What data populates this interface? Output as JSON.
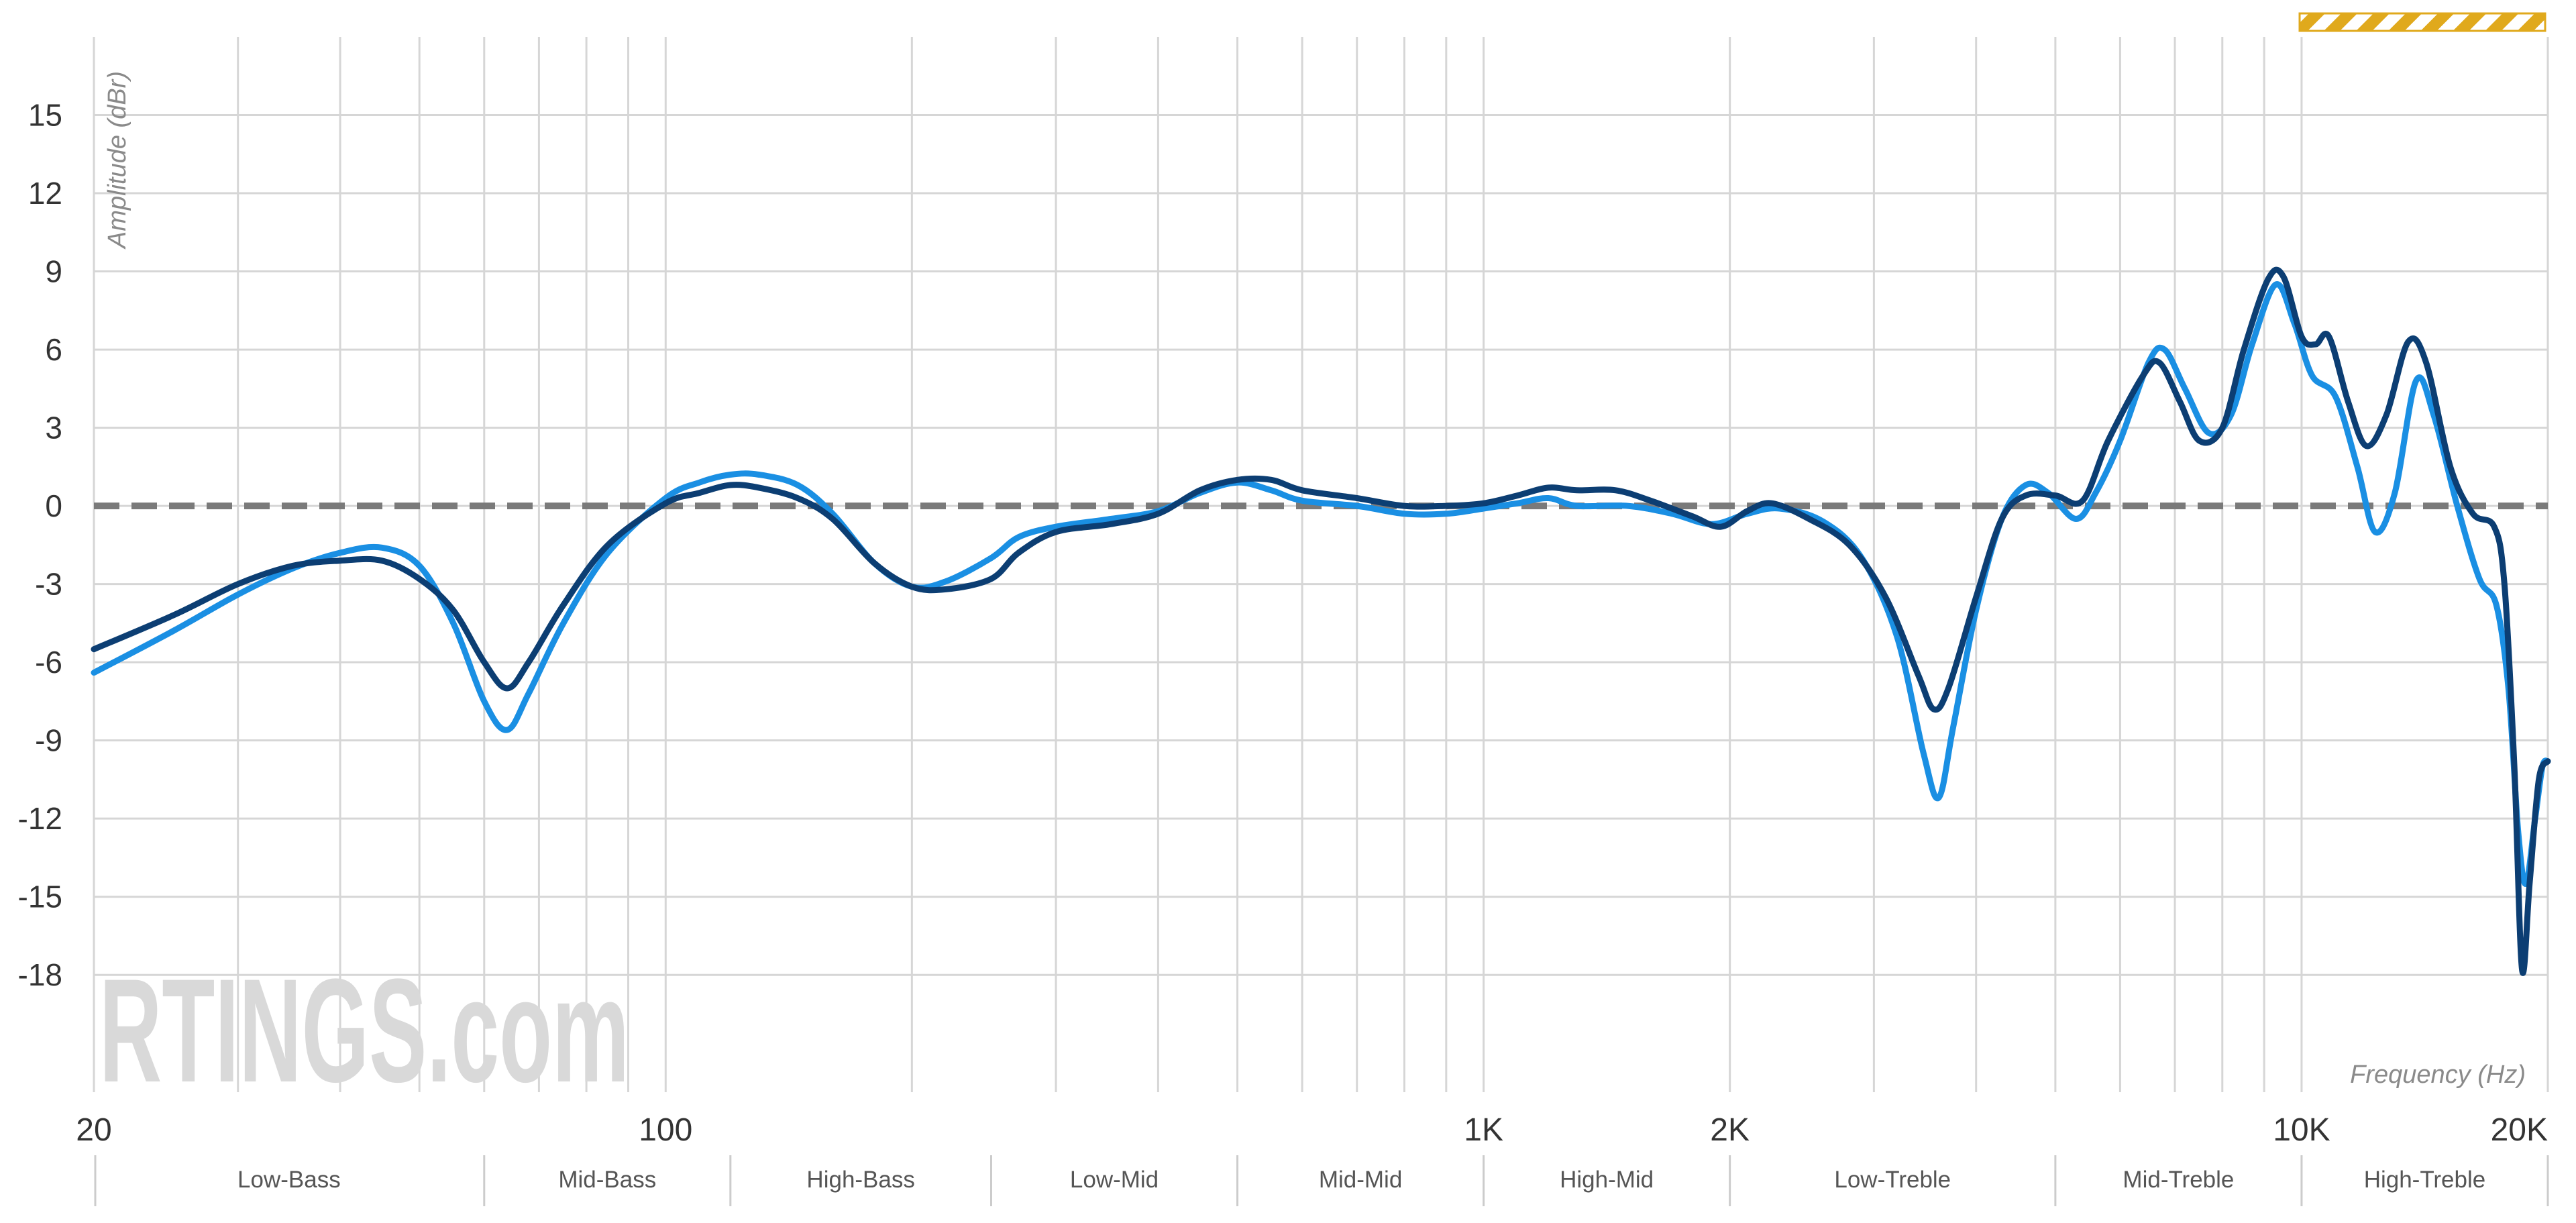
{
  "chart_data": {
    "type": "line",
    "xlabel": "Frequency (Hz)",
    "ylabel": "Amplitude (dBr)",
    "x_scale": "log",
    "xlim": [
      20,
      20000
    ],
    "ylim": [
      -22.5,
      18
    ],
    "grid": true,
    "legend": "none",
    "yticks": [
      {
        "value": 15,
        "label": "15"
      },
      {
        "value": 12,
        "label": "12"
      },
      {
        "value": 9,
        "label": "9"
      },
      {
        "value": 6,
        "label": "6"
      },
      {
        "value": 3,
        "label": "3"
      },
      {
        "value": 0,
        "label": "0"
      },
      {
        "value": -3,
        "label": "-3"
      },
      {
        "value": -6,
        "label": "-6"
      },
      {
        "value": -9,
        "label": "-9"
      },
      {
        "value": -12,
        "label": "-12"
      },
      {
        "value": -15,
        "label": "-15"
      },
      {
        "value": -18,
        "label": "-18"
      }
    ],
    "xticks": [
      {
        "value": 20,
        "label": "20"
      },
      {
        "value": 100,
        "label": "100"
      },
      {
        "value": 1000,
        "label": "1K"
      },
      {
        "value": 2000,
        "label": "2K"
      },
      {
        "value": 10000,
        "label": "10K"
      },
      {
        "value": 20000,
        "label": "20K"
      }
    ],
    "x_gridlines": [
      20,
      30,
      40,
      50,
      60,
      70,
      80,
      90,
      100,
      200,
      300,
      400,
      500,
      600,
      700,
      800,
      900,
      1000,
      2000,
      3000,
      4000,
      5000,
      6000,
      7000,
      8000,
      9000,
      10000,
      20000
    ],
    "bands": [
      {
        "label": "Low-Bass",
        "from": 20,
        "to": 60
      },
      {
        "label": "Mid-Bass",
        "from": 60,
        "to": 120
      },
      {
        "label": "High-Bass",
        "from": 120,
        "to": 250
      },
      {
        "label": "Low-Mid",
        "from": 250,
        "to": 500
      },
      {
        "label": "Mid-Mid",
        "from": 500,
        "to": 1000
      },
      {
        "label": "High-Mid",
        "from": 1000,
        "to": 2000
      },
      {
        "label": "Low-Treble",
        "from": 2000,
        "to": 5000
      },
      {
        "label": "Mid-Treble",
        "from": 5000,
        "to": 10000
      },
      {
        "label": "High-Treble",
        "from": 10000,
        "to": 20000
      }
    ],
    "target_line": {
      "y": 0,
      "color": "#7a7a7a"
    },
    "series": [
      {
        "color": "#1a8fe3",
        "points": [
          [
            20,
            -6.4
          ],
          [
            25,
            -4.8
          ],
          [
            30,
            -3.4
          ],
          [
            35,
            -2.4
          ],
          [
            40,
            -1.8
          ],
          [
            45,
            -1.6
          ],
          [
            50,
            -2.3
          ],
          [
            55,
            -4.5
          ],
          [
            60,
            -7.5
          ],
          [
            64,
            -8.6
          ],
          [
            68,
            -7.2
          ],
          [
            75,
            -4.5
          ],
          [
            85,
            -1.8
          ],
          [
            100,
            0.3
          ],
          [
            110,
            0.9
          ],
          [
            120,
            1.2
          ],
          [
            130,
            1.2
          ],
          [
            145,
            0.8
          ],
          [
            160,
            -0.3
          ],
          [
            180,
            -2.2
          ],
          [
            200,
            -3.1
          ],
          [
            220,
            -2.9
          ],
          [
            250,
            -2.0
          ],
          [
            270,
            -1.2
          ],
          [
            300,
            -0.8
          ],
          [
            350,
            -0.5
          ],
          [
            400,
            -0.2
          ],
          [
            450,
            0.5
          ],
          [
            500,
            0.9
          ],
          [
            550,
            0.6
          ],
          [
            600,
            0.2
          ],
          [
            700,
            0.0
          ],
          [
            800,
            -0.3
          ],
          [
            900,
            -0.3
          ],
          [
            1000,
            -0.1
          ],
          [
            1100,
            0.1
          ],
          [
            1200,
            0.3
          ],
          [
            1300,
            0.0
          ],
          [
            1500,
            0.0
          ],
          [
            1700,
            -0.3
          ],
          [
            1900,
            -0.7
          ],
          [
            2100,
            -0.3
          ],
          [
            2300,
            -0.1
          ],
          [
            2600,
            -0.6
          ],
          [
            2900,
            -2.0
          ],
          [
            3200,
            -5.0
          ],
          [
            3450,
            -9.5
          ],
          [
            3600,
            -11.2
          ],
          [
            3750,
            -8.5
          ],
          [
            4000,
            -4.0
          ],
          [
            4300,
            -0.5
          ],
          [
            4600,
            0.8
          ],
          [
            4900,
            0.5
          ],
          [
            5300,
            -0.5
          ],
          [
            5600,
            0.5
          ],
          [
            6000,
            2.5
          ],
          [
            6500,
            5.5
          ],
          [
            6800,
            6.0
          ],
          [
            7200,
            4.5
          ],
          [
            7700,
            2.8
          ],
          [
            8200,
            3.5
          ],
          [
            8700,
            6.2
          ],
          [
            9300,
            8.5
          ],
          [
            9800,
            7.0
          ],
          [
            10300,
            5.0
          ],
          [
            11000,
            4.2
          ],
          [
            11700,
            1.5
          ],
          [
            12300,
            -1.0
          ],
          [
            13000,
            0.5
          ],
          [
            13800,
            4.8
          ],
          [
            14500,
            3.5
          ],
          [
            15500,
            0.0
          ],
          [
            16500,
            -2.8
          ],
          [
            17300,
            -3.8
          ],
          [
            17900,
            -7.0
          ],
          [
            18400,
            -12.5
          ],
          [
            18800,
            -14.5
          ],
          [
            19300,
            -12.0
          ],
          [
            19700,
            -10.0
          ],
          [
            20000,
            -9.8
          ]
        ]
      },
      {
        "color": "#0c3e73",
        "points": [
          [
            20,
            -5.5
          ],
          [
            25,
            -4.2
          ],
          [
            30,
            -3.0
          ],
          [
            35,
            -2.3
          ],
          [
            40,
            -2.1
          ],
          [
            45,
            -2.1
          ],
          [
            50,
            -2.8
          ],
          [
            55,
            -4.0
          ],
          [
            60,
            -6.0
          ],
          [
            64,
            -7.0
          ],
          [
            68,
            -6.0
          ],
          [
            75,
            -3.8
          ],
          [
            85,
            -1.5
          ],
          [
            100,
            0.1
          ],
          [
            110,
            0.5
          ],
          [
            120,
            0.8
          ],
          [
            130,
            0.7
          ],
          [
            145,
            0.3
          ],
          [
            160,
            -0.5
          ],
          [
            180,
            -2.2
          ],
          [
            200,
            -3.1
          ],
          [
            220,
            -3.2
          ],
          [
            250,
            -2.8
          ],
          [
            270,
            -1.8
          ],
          [
            300,
            -1.0
          ],
          [
            350,
            -0.7
          ],
          [
            400,
            -0.3
          ],
          [
            450,
            0.6
          ],
          [
            500,
            1.0
          ],
          [
            550,
            1.0
          ],
          [
            600,
            0.6
          ],
          [
            700,
            0.3
          ],
          [
            800,
            0.0
          ],
          [
            900,
            0.0
          ],
          [
            1000,
            0.1
          ],
          [
            1100,
            0.4
          ],
          [
            1200,
            0.7
          ],
          [
            1300,
            0.6
          ],
          [
            1450,
            0.6
          ],
          [
            1600,
            0.2
          ],
          [
            1800,
            -0.4
          ],
          [
            1950,
            -0.8
          ],
          [
            2100,
            -0.2
          ],
          [
            2250,
            0.1
          ],
          [
            2500,
            -0.5
          ],
          [
            2800,
            -1.5
          ],
          [
            3100,
            -3.5
          ],
          [
            3400,
            -6.5
          ],
          [
            3550,
            -7.8
          ],
          [
            3700,
            -7.0
          ],
          [
            4000,
            -3.5
          ],
          [
            4300,
            -0.5
          ],
          [
            4600,
            0.4
          ],
          [
            5000,
            0.4
          ],
          [
            5400,
            0.2
          ],
          [
            5800,
            2.5
          ],
          [
            6400,
            5.0
          ],
          [
            6700,
            5.5
          ],
          [
            7100,
            4.0
          ],
          [
            7500,
            2.5
          ],
          [
            8000,
            3.0
          ],
          [
            8500,
            6.0
          ],
          [
            9100,
            8.7
          ],
          [
            9500,
            8.8
          ],
          [
            10000,
            6.5
          ],
          [
            10400,
            6.2
          ],
          [
            10800,
            6.5
          ],
          [
            11400,
            4.0
          ],
          [
            12000,
            2.3
          ],
          [
            12700,
            3.5
          ],
          [
            13500,
            6.3
          ],
          [
            14200,
            5.5
          ],
          [
            15200,
            1.5
          ],
          [
            16200,
            -0.3
          ],
          [
            17200,
            -0.8
          ],
          [
            17700,
            -3.0
          ],
          [
            18200,
            -10.0
          ],
          [
            18600,
            -17.8
          ],
          [
            19000,
            -14.5
          ],
          [
            19500,
            -10.5
          ],
          [
            20000,
            -9.8
          ]
        ]
      }
    ]
  },
  "watermark": "RTINGS.com",
  "colors": {
    "grid": "#d6d6d6",
    "accent_badge": "#e0a91c"
  }
}
